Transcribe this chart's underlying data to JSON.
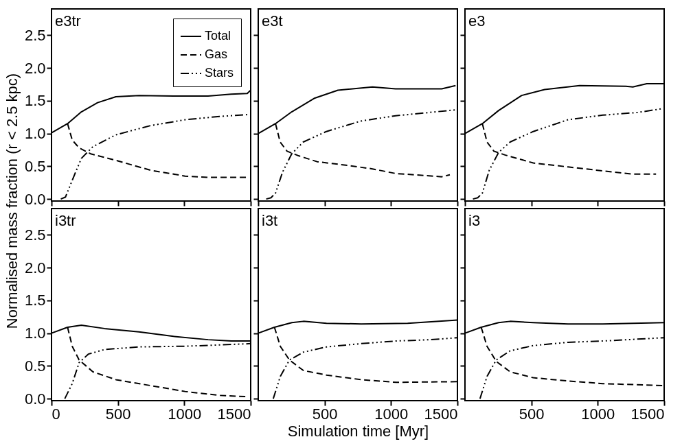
{
  "chart_data": [
    {
      "type": "line",
      "annotations": [
        "e3tr"
      ],
      "ylabel": "Normalised mass fraction (r < 2.5 kpc)",
      "xlim": [
        0,
        1500
      ],
      "ylim": [
        -0.03,
        2.9
      ],
      "xticks": [
        0,
        500,
        1000,
        1500
      ],
      "yticks": [
        {
          "value": 0,
          "label": "0.0"
        },
        0.5,
        {
          "value": 1,
          "label": "1.0"
        },
        1.5,
        {
          "value": 2,
          "label": "2.0"
        },
        2.5
      ],
      "tick_labels": "y",
      "legend": "top right",
      "grid": false,
      "series": [
        {
          "name": "Total",
          "color": "#000000",
          "line_style": "solid",
          "x": [
            0,
            121,
            225,
            347,
            485,
            660,
            919,
            1179,
            1353,
            1474,
            1500
          ],
          "values": [
            1.01,
            1.15,
            1.33,
            1.47,
            1.56,
            1.58,
            1.57,
            1.57,
            1.6,
            1.61,
            1.66
          ]
        },
        {
          "name": "Gas",
          "color": "#000000",
          "line_style": "dashed",
          "x": [
            121,
            156,
            208,
            295,
            485,
            745,
            1006,
            1179,
            1474
          ],
          "values": [
            1.15,
            0.9,
            0.78,
            0.69,
            0.59,
            0.44,
            0.35,
            0.33,
            0.33
          ]
        },
        {
          "name": "Stars",
          "color": "#000000",
          "line_style": "dotted",
          "x": [
            70,
            105,
            173,
            225,
            312,
            485,
            745,
            1006,
            1266,
            1491
          ],
          "values": [
            0.0,
            0.03,
            0.37,
            0.62,
            0.8,
            0.98,
            1.12,
            1.21,
            1.26,
            1.29
          ]
        }
      ]
    },
    {
      "type": "line",
      "annotations": [
        "e3t"
      ],
      "xlim": [
        0,
        1500
      ],
      "ylim": [
        -0.03,
        2.9
      ],
      "xticks": [
        0,
        500,
        1000,
        1500
      ],
      "yticks": [
        0,
        0.5,
        1,
        1.5,
        2,
        2.5
      ],
      "tick_labels": false,
      "grid": false,
      "series": [
        {
          "color": "#000000",
          "line_style": "solid",
          "x": [
            0,
            130,
            252,
            426,
            600,
            860,
            1034,
            1382,
            1486
          ],
          "values": [
            1.0,
            1.15,
            1.33,
            1.54,
            1.66,
            1.71,
            1.68,
            1.68,
            1.73
          ]
        },
        {
          "color": "#000000",
          "line_style": "dashed",
          "x": [
            130,
            165,
            217,
            304,
            443,
            687,
            860,
            1034,
            1382,
            1443
          ],
          "values": [
            1.15,
            0.87,
            0.73,
            0.66,
            0.57,
            0.51,
            0.46,
            0.39,
            0.34,
            0.37
          ]
        },
        {
          "color": "#000000",
          "line_style": "dotted",
          "x": [
            60,
            96,
            130,
            183,
            252,
            339,
            513,
            773,
            1034,
            1486
          ],
          "values": [
            0.0,
            0.02,
            0.09,
            0.41,
            0.69,
            0.87,
            1.03,
            1.19,
            1.27,
            1.36
          ]
        }
      ]
    },
    {
      "type": "line",
      "annotations": [
        "e3"
      ],
      "xlim": [
        0,
        1500
      ],
      "ylim": [
        -0.03,
        2.9
      ],
      "xticks": [
        0,
        500,
        1000,
        1500
      ],
      "yticks": [
        0,
        0.5,
        1,
        1.5,
        2,
        2.5
      ],
      "tick_labels": false,
      "grid": false,
      "series": [
        {
          "color": "#000000",
          "line_style": "solid",
          "x": [
            0,
            131,
            253,
            427,
            600,
            863,
            1212,
            1264,
            1369,
            1500
          ],
          "values": [
            1.0,
            1.15,
            1.35,
            1.58,
            1.67,
            1.73,
            1.72,
            1.71,
            1.76,
            1.76
          ]
        },
        {
          "color": "#000000",
          "line_style": "dashed",
          "x": [
            131,
            166,
            218,
            305,
            514,
            776,
            1038,
            1264,
            1439
          ],
          "values": [
            1.15,
            0.87,
            0.73,
            0.67,
            0.55,
            0.49,
            0.43,
            0.38,
            0.38
          ]
        },
        {
          "color": "#000000",
          "line_style": "dotted",
          "x": [
            60,
            96,
            131,
            183,
            253,
            340,
            514,
            776,
            1038,
            1299,
            1491
          ],
          "values": [
            0.0,
            0.02,
            0.09,
            0.44,
            0.71,
            0.87,
            1.03,
            1.21,
            1.28,
            1.32,
            1.38
          ]
        }
      ]
    },
    {
      "type": "line",
      "annotations": [
        "i3tr"
      ],
      "xlim": [
        0,
        1500
      ],
      "ylim": [
        -0.03,
        2.9
      ],
      "xticks": [
        0,
        500,
        1000,
        1500
      ],
      "yticks": [
        {
          "value": 0,
          "label": "0.0"
        },
        0.5,
        {
          "value": 1,
          "label": "1.0"
        },
        1.5,
        {
          "value": 2,
          "label": "2.0"
        },
        2.5
      ],
      "grid": false,
      "series": [
        {
          "color": "#000000",
          "line_style": "solid",
          "x": [
            0,
            121,
            225,
            399,
            659,
            919,
            1179,
            1353,
            1500
          ],
          "values": [
            1.0,
            1.09,
            1.12,
            1.07,
            1.02,
            0.95,
            0.9,
            0.88,
            0.88
          ]
        },
        {
          "color": "#000000",
          "line_style": "dashed",
          "x": [
            121,
            156,
            208,
            312,
            485,
            745,
            1006,
            1266,
            1483
          ],
          "values": [
            1.09,
            0.8,
            0.59,
            0.41,
            0.29,
            0.2,
            0.11,
            0.05,
            0.03
          ]
        },
        {
          "color": "#000000",
          "line_style": "dotted",
          "x": [
            100,
            156,
            208,
            277,
            399,
            659,
            1006,
            1266,
            1500
          ],
          "values": [
            0.0,
            0.23,
            0.55,
            0.68,
            0.75,
            0.79,
            0.8,
            0.82,
            0.84
          ]
        }
      ]
    },
    {
      "type": "line",
      "annotations": [
        "i3t"
      ],
      "xlabel": "Simulation time [Myr]",
      "xlim": [
        0,
        1500
      ],
      "ylim": [
        -0.03,
        2.9
      ],
      "xticks": [
        500,
        1000,
        1500
      ],
      "yticks": [
        0,
        0.5,
        1,
        1.5,
        2,
        2.5
      ],
      "tick_labels": "x",
      "grid": false,
      "series": [
        {
          "color": "#000000",
          "line_style": "solid",
          "x": [
            0,
            122,
            253,
            340,
            514,
            776,
            1125,
            1500
          ],
          "values": [
            1.0,
            1.09,
            1.16,
            1.18,
            1.15,
            1.14,
            1.15,
            1.2
          ]
        },
        {
          "color": "#000000",
          "line_style": "dashed",
          "x": [
            122,
            166,
            235,
            340,
            514,
            776,
            1038,
            1500
          ],
          "values": [
            1.09,
            0.8,
            0.59,
            0.43,
            0.36,
            0.29,
            0.25,
            0.26
          ]
        },
        {
          "color": "#000000",
          "line_style": "dotted",
          "x": [
            113,
            166,
            235,
            340,
            514,
            776,
            1038,
            1299,
            1500
          ],
          "values": [
            0.0,
            0.34,
            0.59,
            0.71,
            0.79,
            0.84,
            0.88,
            0.9,
            0.93
          ]
        }
      ]
    },
    {
      "type": "line",
      "annotations": [
        "i3"
      ],
      "xlim": [
        0,
        1500
      ],
      "ylim": [
        -0.03,
        2.9
      ],
      "xticks": [
        500,
        1000,
        1500
      ],
      "yticks": [
        0,
        0.5,
        1,
        1.5,
        2,
        2.5
      ],
      "tick_labels": "x",
      "grid": false,
      "series": [
        {
          "color": "#000000",
          "line_style": "solid",
          "x": [
            0,
            122,
            253,
            340,
            514,
            776,
            1038,
            1500
          ],
          "values": [
            1.0,
            1.09,
            1.16,
            1.18,
            1.16,
            1.14,
            1.14,
            1.16
          ]
        },
        {
          "color": "#000000",
          "line_style": "dashed",
          "x": [
            122,
            166,
            235,
            340,
            514,
            776,
            1038,
            1500
          ],
          "values": [
            1.09,
            0.8,
            0.57,
            0.41,
            0.32,
            0.27,
            0.23,
            0.2
          ]
        },
        {
          "color": "#000000",
          "line_style": "dotted",
          "x": [
            113,
            166,
            235,
            340,
            514,
            776,
            1038,
            1500
          ],
          "values": [
            0.0,
            0.34,
            0.59,
            0.73,
            0.81,
            0.86,
            0.88,
            0.93
          ]
        }
      ]
    }
  ]
}
